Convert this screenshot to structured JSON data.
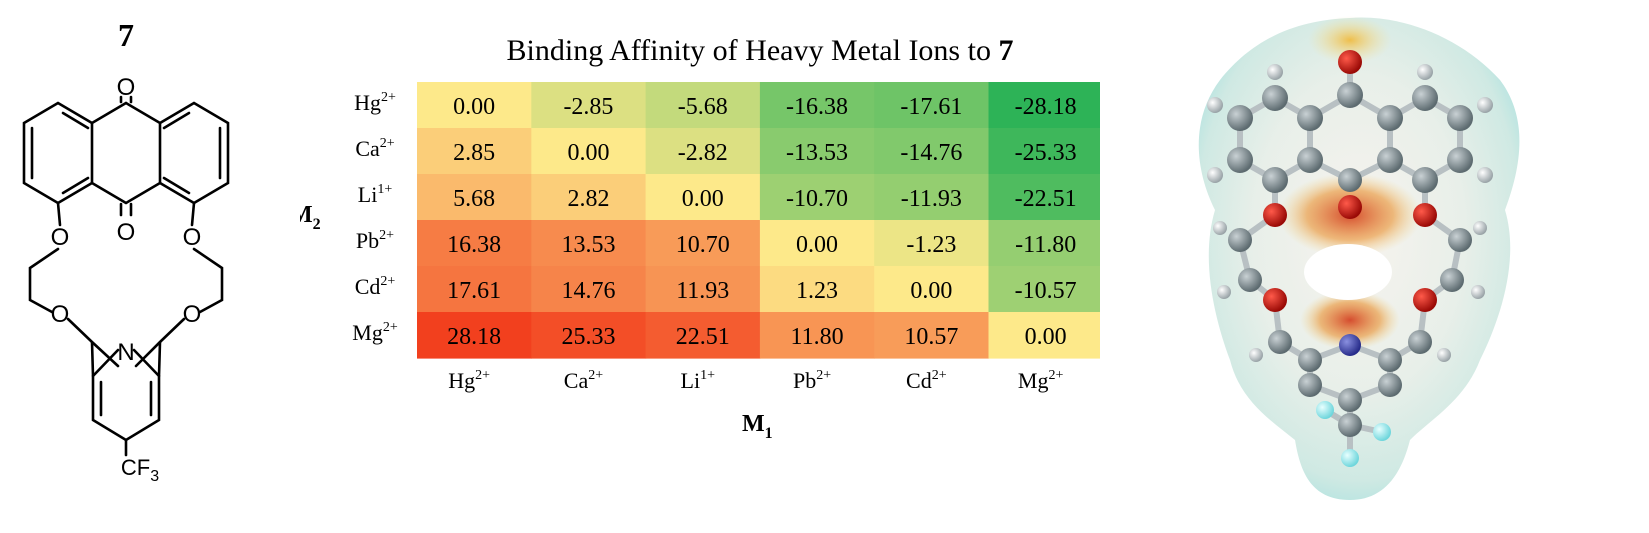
{
  "compound_label": "7",
  "structure_atoms": {
    "oxygen": "O",
    "nitrogen": "N",
    "cf3_main": "CF",
    "cf3_sub": "3"
  },
  "chart_data": {
    "type": "heatmap",
    "title_prefix": "Binding Affinity of Heavy Metal Ions to ",
    "title_bold": "7",
    "xlabel": "M",
    "xlabel_sub": "1",
    "ylabel": "M",
    "ylabel_sub": "2",
    "columns": [
      {
        "base": "Hg",
        "sup": "2+"
      },
      {
        "base": "Ca",
        "sup": "2+"
      },
      {
        "base": "Li",
        "sup": "1+"
      },
      {
        "base": "Pb",
        "sup": "2+"
      },
      {
        "base": "Cd",
        "sup": "2+"
      },
      {
        "base": "Mg",
        "sup": "2+"
      }
    ],
    "rows": [
      {
        "base": "Hg",
        "sup": "2+"
      },
      {
        "base": "Ca",
        "sup": "2+"
      },
      {
        "base": "Li",
        "sup": "1+"
      },
      {
        "base": "Pb",
        "sup": "2+"
      },
      {
        "base": "Cd",
        "sup": "2+"
      },
      {
        "base": "Mg",
        "sup": "2+"
      }
    ],
    "values": [
      [
        "0.00",
        "-2.85",
        "-5.68",
        "-16.38",
        "-17.61",
        "-28.18"
      ],
      [
        "2.85",
        "0.00",
        "-2.82",
        "-13.53",
        "-14.76",
        "-25.33"
      ],
      [
        "5.68",
        "2.82",
        "0.00",
        "-10.70",
        "-11.93",
        "-22.51"
      ],
      [
        "16.38",
        "13.53",
        "10.70",
        "0.00",
        "-1.23",
        "-11.80"
      ],
      [
        "17.61",
        "14.76",
        "11.93",
        "1.23",
        "0.00",
        "-10.57"
      ],
      [
        "28.18",
        "25.33",
        "22.51",
        "11.80",
        "10.57",
        "0.00"
      ]
    ],
    "colorscale": {
      "negative": "#2db357",
      "zero": "#fde98a",
      "positive": "#f2401e"
    }
  }
}
